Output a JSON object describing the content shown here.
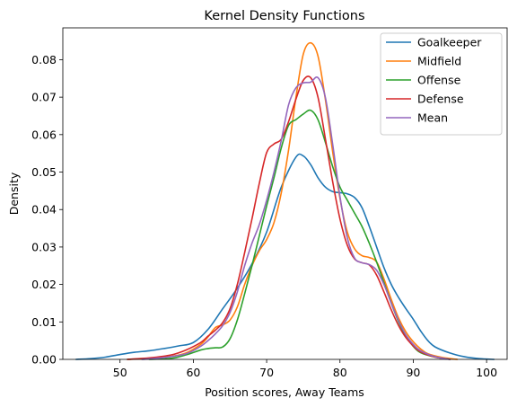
{
  "chart_data": {
    "type": "line",
    "title": "Kernel Density Functions",
    "xlabel": "Position scores, Away Teams",
    "ylabel": "Density",
    "xlim": [
      42.2,
      102.8
    ],
    "ylim": [
      0,
      0.0885
    ],
    "xticks": [
      50,
      60,
      70,
      80,
      90,
      100
    ],
    "yticks": [
      0.0,
      0.01,
      0.02,
      0.03,
      0.04,
      0.05,
      0.06,
      0.07,
      0.08
    ],
    "ytick_labels": [
      "0.00",
      "0.01",
      "0.02",
      "0.03",
      "0.04",
      "0.05",
      "0.06",
      "0.07",
      "0.08"
    ],
    "grid": false,
    "legend_position": "top-right",
    "series": [
      {
        "name": "Goalkeeper",
        "color": "#1f77b4",
        "points": [
          [
            44,
            0
          ],
          [
            46,
            0.0002
          ],
          [
            48,
            0.0006
          ],
          [
            50,
            0.0013
          ],
          [
            52,
            0.0019
          ],
          [
            54,
            0.0023
          ],
          [
            56,
            0.0029
          ],
          [
            58,
            0.0036
          ],
          [
            60,
            0.0045
          ],
          [
            62,
            0.008
          ],
          [
            64,
            0.0135
          ],
          [
            66,
            0.019
          ],
          [
            68,
            0.0255
          ],
          [
            70,
            0.034
          ],
          [
            72,
            0.046
          ],
          [
            74,
            0.054
          ],
          [
            75,
            0.0543
          ],
          [
            76,
            0.052
          ],
          [
            77,
            0.0485
          ],
          [
            78,
            0.046
          ],
          [
            79,
            0.0448
          ],
          [
            80,
            0.0445
          ],
          [
            81,
            0.0442
          ],
          [
            82,
            0.0432
          ],
          [
            83,
            0.0405
          ],
          [
            84,
            0.0355
          ],
          [
            85,
            0.03
          ],
          [
            86,
            0.0245
          ],
          [
            87,
            0.02
          ],
          [
            88,
            0.0165
          ],
          [
            89,
            0.0135
          ],
          [
            90,
            0.0107
          ],
          [
            91,
            0.0076
          ],
          [
            92,
            0.005
          ],
          [
            93,
            0.0033
          ],
          [
            95,
            0.0017
          ],
          [
            97,
            0.0007
          ],
          [
            99,
            0.0002
          ],
          [
            101,
            0
          ]
        ]
      },
      {
        "name": "Midfield",
        "color": "#ff7f0e",
        "points": [
          [
            51,
            0
          ],
          [
            54,
            0.0003
          ],
          [
            57,
            0.0008
          ],
          [
            59,
            0.0017
          ],
          [
            61,
            0.004
          ],
          [
            62,
            0.006
          ],
          [
            63,
            0.0085
          ],
          [
            64,
            0.0092
          ],
          [
            65,
            0.0105
          ],
          [
            66,
            0.014
          ],
          [
            67,
            0.02
          ],
          [
            68,
            0.025
          ],
          [
            69,
            0.029
          ],
          [
            70,
            0.032
          ],
          [
            71,
            0.0365
          ],
          [
            72,
            0.0445
          ],
          [
            73,
            0.056
          ],
          [
            74,
            0.07
          ],
          [
            75,
            0.0815
          ],
          [
            76,
            0.0845
          ],
          [
            77,
            0.081
          ],
          [
            78,
            0.0695
          ],
          [
            79,
            0.0555
          ],
          [
            80,
            0.043
          ],
          [
            81,
            0.034
          ],
          [
            82,
            0.0295
          ],
          [
            83,
            0.0277
          ],
          [
            84,
            0.0272
          ],
          [
            85,
            0.026
          ],
          [
            86,
            0.0215
          ],
          [
            87,
            0.016
          ],
          [
            88,
            0.011
          ],
          [
            89,
            0.0073
          ],
          [
            90,
            0.0047
          ],
          [
            91,
            0.0028
          ],
          [
            92,
            0.0015
          ],
          [
            94,
            0.0005
          ],
          [
            96,
            0
          ]
        ]
      },
      {
        "name": "Offense",
        "color": "#2ca02c",
        "points": [
          [
            54,
            0
          ],
          [
            57,
            0.0003
          ],
          [
            59,
            0.0012
          ],
          [
            61,
            0.0025
          ],
          [
            62,
            0.0029
          ],
          [
            63,
            0.0031
          ],
          [
            64,
            0.0033
          ],
          [
            65,
            0.0055
          ],
          [
            66,
            0.0105
          ],
          [
            67,
            0.0175
          ],
          [
            68,
            0.025
          ],
          [
            69,
            0.033
          ],
          [
            70,
            0.041
          ],
          [
            71,
            0.0485
          ],
          [
            72,
            0.0565
          ],
          [
            73,
            0.0625
          ],
          [
            74,
            0.064
          ],
          [
            75,
            0.0655
          ],
          [
            76,
            0.0665
          ],
          [
            77,
            0.064
          ],
          [
            78,
            0.058
          ],
          [
            79,
            0.0515
          ],
          [
            80,
            0.046
          ],
          [
            81,
            0.0425
          ],
          [
            82,
            0.039
          ],
          [
            83,
            0.0355
          ],
          [
            84,
            0.031
          ],
          [
            85,
            0.026
          ],
          [
            86,
            0.0205
          ],
          [
            87,
            0.015
          ],
          [
            88,
            0.01
          ],
          [
            89,
            0.0062
          ],
          [
            90,
            0.0035
          ],
          [
            91,
            0.0018
          ],
          [
            93,
            0.0006
          ],
          [
            95,
            0
          ]
        ]
      },
      {
        "name": "Defense",
        "color": "#d62728",
        "points": [
          [
            51,
            0
          ],
          [
            54,
            0.0004
          ],
          [
            57,
            0.0012
          ],
          [
            59,
            0.0025
          ],
          [
            61,
            0.0045
          ],
          [
            62,
            0.0062
          ],
          [
            63,
            0.0078
          ],
          [
            64,
            0.0098
          ],
          [
            65,
            0.0135
          ],
          [
            66,
            0.02
          ],
          [
            67,
            0.0285
          ],
          [
            68,
            0.0375
          ],
          [
            69,
            0.047
          ],
          [
            70,
            0.0552
          ],
          [
            71,
            0.0575
          ],
          [
            72,
            0.0588
          ],
          [
            73,
            0.0635
          ],
          [
            74,
            0.0695
          ],
          [
            75,
            0.0745
          ],
          [
            76,
            0.0752
          ],
          [
            77,
            0.07
          ],
          [
            78,
            0.059
          ],
          [
            79,
            0.0475
          ],
          [
            80,
            0.0375
          ],
          [
            81,
            0.0305
          ],
          [
            82,
            0.0268
          ],
          [
            83,
            0.0258
          ],
          [
            84,
            0.0252
          ],
          [
            85,
            0.0225
          ],
          [
            86,
            0.018
          ],
          [
            87,
            0.0132
          ],
          [
            88,
            0.009
          ],
          [
            89,
            0.0058
          ],
          [
            90,
            0.0036
          ],
          [
            91,
            0.002
          ],
          [
            93,
            0.0006
          ],
          [
            95,
            0
          ]
        ]
      },
      {
        "name": "Mean",
        "color": "#9467bd",
        "points": [
          [
            53,
            0
          ],
          [
            56,
            0.0005
          ],
          [
            59,
            0.0015
          ],
          [
            61,
            0.0035
          ],
          [
            62,
            0.005
          ],
          [
            63,
            0.0068
          ],
          [
            64,
            0.009
          ],
          [
            65,
            0.0125
          ],
          [
            66,
            0.018
          ],
          [
            67,
            0.025
          ],
          [
            68,
            0.031
          ],
          [
            69,
            0.036
          ],
          [
            70,
            0.0425
          ],
          [
            71,
            0.05
          ],
          [
            72,
            0.0585
          ],
          [
            73,
            0.068
          ],
          [
            74,
            0.0725
          ],
          [
            75,
            0.0738
          ],
          [
            76,
            0.074
          ],
          [
            77,
            0.0752
          ],
          [
            78,
            0.07
          ],
          [
            79,
            0.0575
          ],
          [
            80,
            0.0435
          ],
          [
            81,
            0.0325
          ],
          [
            82,
            0.027
          ],
          [
            83,
            0.0258
          ],
          [
            84,
            0.0253
          ],
          [
            85,
            0.0238
          ],
          [
            86,
            0.02
          ],
          [
            87,
            0.015
          ],
          [
            88,
            0.0103
          ],
          [
            89,
            0.0065
          ],
          [
            90,
            0.004
          ],
          [
            91,
            0.0023
          ],
          [
            93,
            0.0007
          ],
          [
            95,
            0
          ]
        ]
      }
    ]
  }
}
